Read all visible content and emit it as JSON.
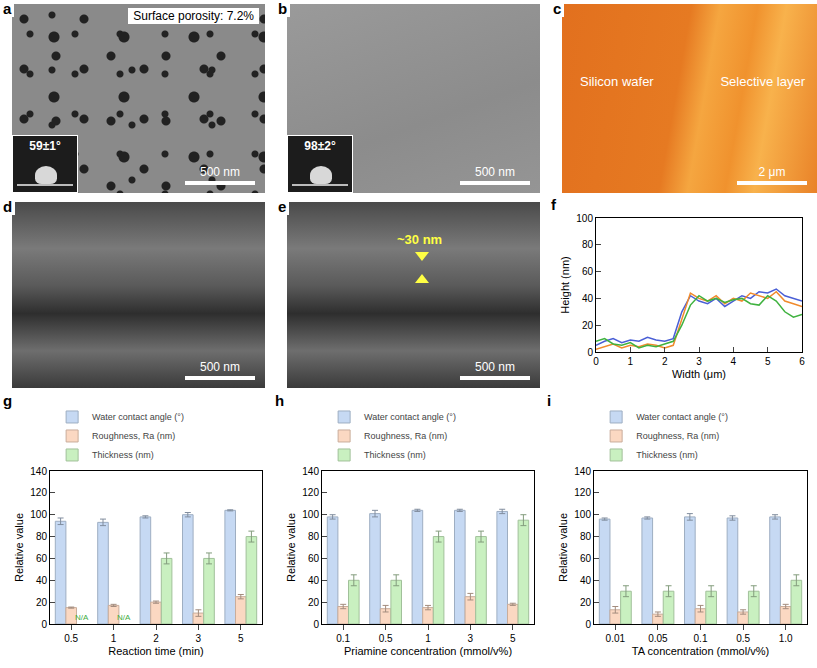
{
  "image_panels": [
    {
      "panel": "a",
      "type": "sem",
      "texts": {
        "label": "Surface porosity: 7.2%",
        "contact_angle": "59±1°",
        "scale_bar": "500 nm"
      }
    },
    {
      "panel": "b",
      "type": "sem",
      "texts": {
        "contact_angle": "98±2°",
        "scale_bar": "500 nm"
      }
    },
    {
      "panel": "c",
      "type": "afm",
      "texts": {
        "left": "Silicon wafer",
        "right": "Selective layer",
        "scale_bar": "2 μm"
      }
    },
    {
      "panel": "d",
      "type": "sem",
      "texts": {
        "scale_bar": "500 nm"
      }
    },
    {
      "panel": "e",
      "type": "sem",
      "texts": {
        "thickness": "~30 nm",
        "scale_bar": "500 nm"
      }
    }
  ],
  "chart_data": [
    {
      "panel": "f",
      "type": "line",
      "x_label": "Width (μm)",
      "y_label": "Height (nm)",
      "x": [
        0,
        0.25,
        0.5,
        0.75,
        1,
        1.25,
        1.5,
        1.75,
        2,
        2.25,
        2.5,
        2.75,
        3,
        3.25,
        3.5,
        3.75,
        4,
        4.25,
        4.5,
        4.75,
        5,
        5.25,
        5.5,
        5.75,
        6
      ],
      "series": [
        {
          "color": "#4a5fd6",
          "values": [
            5,
            8,
            10,
            7,
            9,
            8,
            11,
            9,
            8,
            10,
            30,
            42,
            38,
            36,
            40,
            34,
            38,
            42,
            40,
            45,
            44,
            47,
            42,
            40,
            38
          ]
        },
        {
          "color": "#f08a2c",
          "values": [
            2,
            4,
            6,
            3,
            5,
            4,
            6,
            5,
            3,
            5,
            25,
            44,
            40,
            38,
            42,
            36,
            40,
            38,
            44,
            42,
            40,
            45,
            38,
            36,
            34
          ]
        },
        {
          "color": "#3fb23f",
          "values": [
            8,
            10,
            6,
            5,
            7,
            3,
            5,
            4,
            6,
            8,
            20,
            35,
            42,
            38,
            40,
            37,
            39,
            40,
            36,
            35,
            42,
            38,
            30,
            26,
            28
          ]
        }
      ],
      "xlim": [
        0,
        6
      ],
      "xticks": [
        0,
        1,
        2,
        3,
        4,
        5,
        6
      ],
      "ylim": [
        0,
        100
      ],
      "yticks": [
        0,
        20,
        40,
        60,
        80,
        100
      ]
    },
    {
      "panel": "g",
      "type": "bar",
      "x_label": "Reaction time (min)",
      "y_label": "Relative value",
      "legend": "top left",
      "categories": [
        "0.5",
        "1",
        "2",
        "3",
        "5"
      ],
      "series": [
        {
          "name": "Water contact angle (°)",
          "color": "#c6d9f3",
          "values": [
            94,
            93,
            98,
            100,
            104
          ],
          "error": [
            3,
            3,
            1,
            2,
            0.5
          ]
        },
        {
          "name": "Roughness, Ra (nm)",
          "color": "#fbd8c2",
          "values": [
            15,
            17,
            20,
            10,
            25
          ],
          "error": [
            0.5,
            1,
            1,
            3,
            2
          ]
        },
        {
          "name": "Thickness (nm)",
          "color": "#c9f0c0",
          "values": [
            null,
            null,
            60,
            60,
            80
          ],
          "error": [
            null,
            null,
            5,
            5,
            5
          ]
        }
      ],
      "annotations": [
        {
          "text": "N/A",
          "category": "0.5",
          "series": "Thickness (nm)"
        },
        {
          "text": "N/A",
          "category": "1",
          "series": "Thickness (nm)"
        }
      ],
      "ylim": [
        0,
        140
      ],
      "yticks": [
        0,
        20,
        40,
        60,
        80,
        100,
        120,
        140
      ]
    },
    {
      "panel": "h",
      "type": "bar",
      "x_label": "Priamine concentration (mmol/v%)",
      "y_label": "Relative value",
      "legend": "top left",
      "categories": [
        "0.1",
        "0.5",
        "1",
        "3",
        "5"
      ],
      "series": [
        {
          "name": "Water contact angle (°)",
          "color": "#c6d9f3",
          "values": [
            98,
            101,
            104,
            104,
            103
          ],
          "error": [
            2,
            3,
            1,
            1,
            2
          ]
        },
        {
          "name": "Roughness, Ra (nm)",
          "color": "#fbd8c2",
          "values": [
            16,
            14,
            15,
            25,
            18
          ],
          "error": [
            2,
            3,
            2,
            3,
            1
          ]
        },
        {
          "name": "Thickness (nm)",
          "color": "#c9f0c0",
          "values": [
            40,
            40,
            80,
            80,
            95
          ],
          "error": [
            5,
            5,
            5,
            5,
            5
          ]
        }
      ],
      "ylim": [
        0,
        140
      ],
      "yticks": [
        0,
        20,
        40,
        60,
        80,
        100,
        120,
        140
      ]
    },
    {
      "panel": "i",
      "type": "bar",
      "x_label": "TA concentration (mmol/v%)",
      "y_label": "Relative value",
      "legend": "top left",
      "categories": [
        "0.01",
        "0.05",
        "0.1",
        "0.5",
        "1.0"
      ],
      "series": [
        {
          "name": "Water contact angle (°)",
          "color": "#c6d9f3",
          "values": [
            96,
            97,
            98,
            97,
            98
          ],
          "error": [
            1,
            1,
            3,
            2,
            2
          ]
        },
        {
          "name": "Roughness, Ra (nm)",
          "color": "#fbd8c2",
          "values": [
            13,
            9,
            14,
            11,
            16
          ],
          "error": [
            3,
            2,
            3,
            2,
            2
          ]
        },
        {
          "name": "Thickness (nm)",
          "color": "#c9f0c0",
          "values": [
            30,
            30,
            30,
            30,
            40
          ],
          "error": [
            5,
            5,
            5,
            5,
            5
          ]
        }
      ],
      "ylim": [
        0,
        140
      ],
      "yticks": [
        0,
        20,
        40,
        60,
        80,
        100,
        120,
        140
      ]
    }
  ]
}
